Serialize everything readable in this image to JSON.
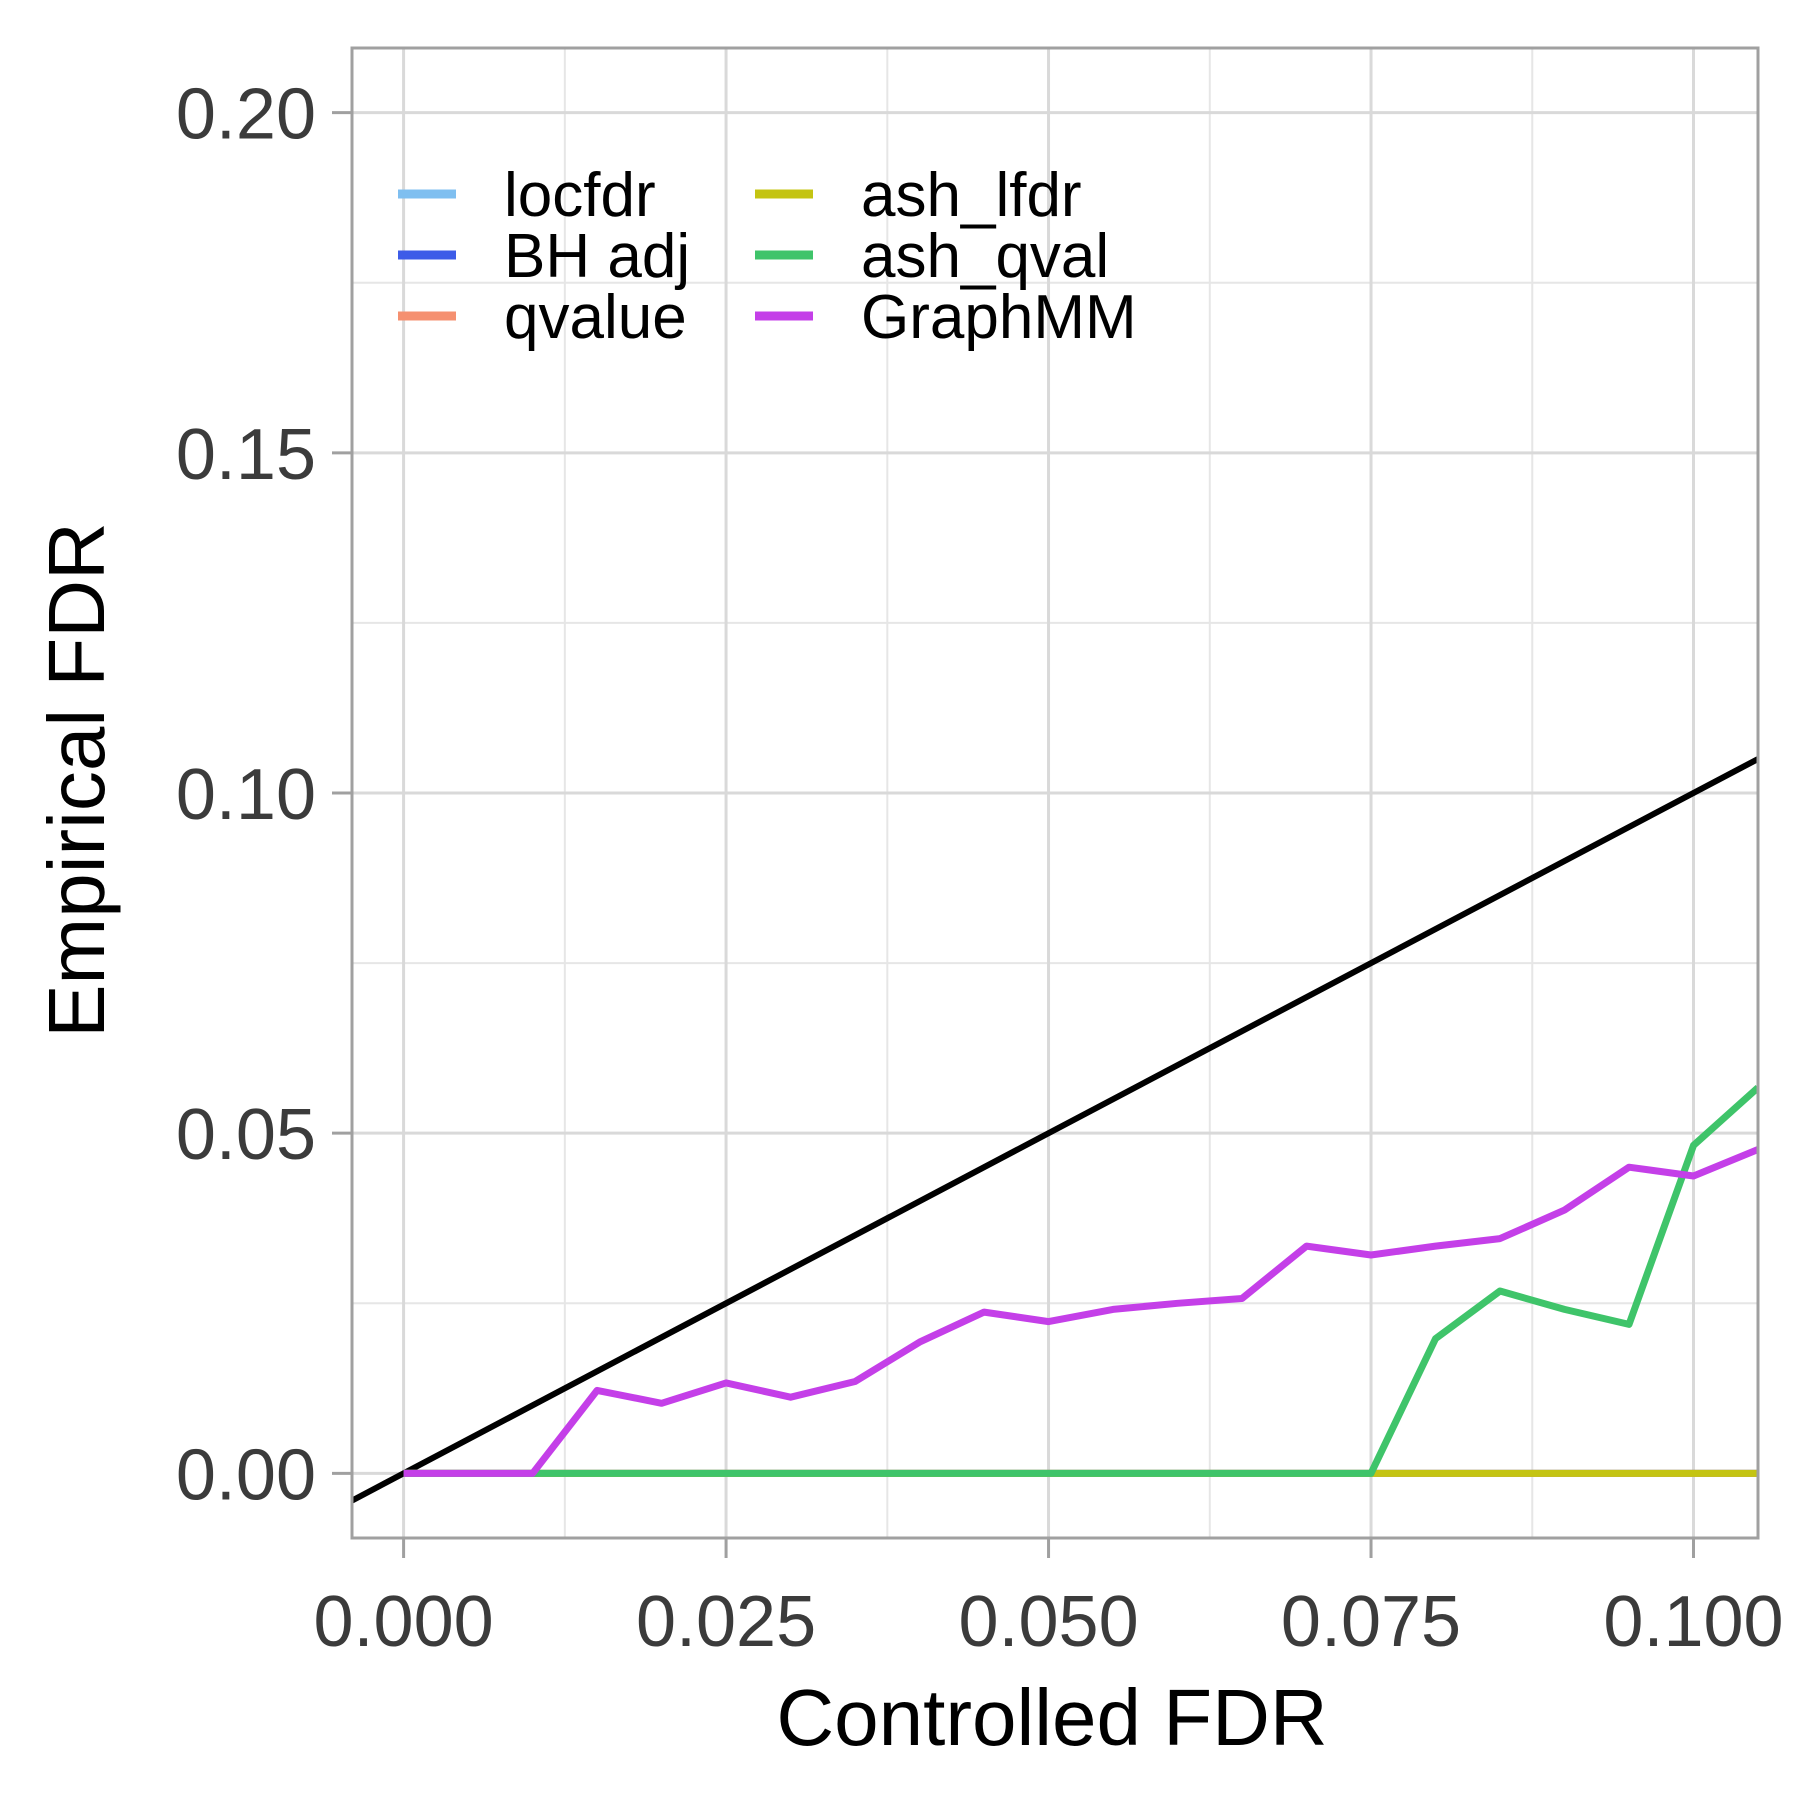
{
  "chart_data": {
    "type": "line",
    "xlabel": "Controlled FDR",
    "ylabel": "Empirical FDR",
    "xlim": [
      -0.004,
      0.105
    ],
    "ylim": [
      -0.0095,
      0.2095
    ],
    "x_ticks": [
      {
        "value": 0.0,
        "label": "0.000"
      },
      {
        "value": 0.025,
        "label": "0.025"
      },
      {
        "value": 0.05,
        "label": "0.050"
      },
      {
        "value": 0.075,
        "label": "0.075"
      },
      {
        "value": 0.1,
        "label": "0.100"
      }
    ],
    "y_ticks": [
      {
        "value": 0.0,
        "label": "0.00"
      },
      {
        "value": 0.05,
        "label": "0.05"
      },
      {
        "value": 0.1,
        "label": "0.10"
      },
      {
        "value": 0.15,
        "label": "0.15"
      },
      {
        "value": 0.2,
        "label": "0.20"
      }
    ],
    "grid": true,
    "legend_position": "top-left",
    "reference_line": {
      "x": [
        -0.004,
        0.105
      ],
      "y": [
        -0.004,
        0.105
      ],
      "color": "#000000"
    },
    "series": [
      {
        "name": "locfdr",
        "color": "#7fbff0",
        "x": [
          0.0,
          0.005,
          0.01,
          0.015,
          0.02,
          0.025,
          0.03,
          0.035,
          0.04,
          0.045,
          0.05,
          0.055,
          0.06,
          0.065,
          0.07,
          0.075,
          0.08,
          0.085,
          0.09,
          0.095,
          0.1,
          0.105
        ],
        "y": [
          0,
          0,
          0,
          0,
          0,
          0,
          0,
          0,
          0,
          0,
          0,
          0,
          0,
          0,
          0,
          0,
          0,
          0,
          0,
          0,
          0,
          0
        ]
      },
      {
        "name": "BH adj",
        "color": "#3d5ce8",
        "x": [
          0.0,
          0.005,
          0.01,
          0.015,
          0.02,
          0.025,
          0.03,
          0.035,
          0.04,
          0.045,
          0.05,
          0.055,
          0.06,
          0.065,
          0.07,
          0.075,
          0.08,
          0.085,
          0.09,
          0.095,
          0.1,
          0.105
        ],
        "y": [
          0,
          0,
          0,
          0,
          0,
          0,
          0,
          0,
          0,
          0,
          0,
          0,
          0,
          0,
          0,
          0,
          0,
          0,
          0,
          0,
          0,
          0
        ]
      },
      {
        "name": "qvalue",
        "color": "#f59070",
        "x": [
          0.0,
          0.005,
          0.01,
          0.015,
          0.02,
          0.025,
          0.03,
          0.035,
          0.04,
          0.045,
          0.05,
          0.055,
          0.06,
          0.065,
          0.07,
          0.075,
          0.08,
          0.085,
          0.09,
          0.095,
          0.1,
          0.105
        ],
        "y": [
          0,
          0,
          0,
          0,
          0,
          0,
          0,
          0,
          0,
          0,
          0,
          0,
          0,
          0,
          0,
          0,
          0,
          0,
          0,
          0,
          0,
          0
        ]
      },
      {
        "name": "ash_lfdr",
        "color": "#c4c412",
        "x": [
          0.0,
          0.005,
          0.01,
          0.015,
          0.02,
          0.025,
          0.03,
          0.035,
          0.04,
          0.045,
          0.05,
          0.055,
          0.06,
          0.065,
          0.07,
          0.075,
          0.08,
          0.085,
          0.09,
          0.095,
          0.1,
          0.105
        ],
        "y": [
          0,
          0,
          0,
          0,
          0,
          0,
          0,
          0,
          0,
          0,
          0,
          0,
          0,
          0,
          0,
          0,
          0,
          0,
          0,
          0,
          0,
          0
        ]
      },
      {
        "name": "ash_qval",
        "color": "#3fc46a",
        "x": [
          0.0,
          0.005,
          0.01,
          0.015,
          0.02,
          0.025,
          0.03,
          0.035,
          0.04,
          0.045,
          0.05,
          0.055,
          0.06,
          0.065,
          0.07,
          0.075,
          0.08,
          0.085,
          0.09,
          0.095,
          0.1,
          0.105
        ],
        "y": [
          0,
          0,
          0,
          0,
          0,
          0,
          0,
          0,
          0,
          0,
          0,
          0,
          0,
          0,
          0,
          0,
          0.0198,
          0.0268,
          0.0241,
          0.0219,
          0.0482,
          0.0567
        ]
      },
      {
        "name": "GraphMM",
        "color": "#c43fe8",
        "x": [
          0.0,
          0.005,
          0.01,
          0.015,
          0.02,
          0.025,
          0.03,
          0.035,
          0.04,
          0.045,
          0.05,
          0.055,
          0.06,
          0.065,
          0.07,
          0.075,
          0.08,
          0.085,
          0.09,
          0.095,
          0.1,
          0.105
        ],
        "y": [
          0,
          0,
          0,
          0.0122,
          0.0103,
          0.0133,
          0.0112,
          0.0135,
          0.0193,
          0.0237,
          0.0223,
          0.0241,
          0.025,
          0.0257,
          0.0334,
          0.0321,
          0.0334,
          0.0345,
          0.0387,
          0.045,
          0.0437,
          0.0476
        ]
      }
    ]
  }
}
